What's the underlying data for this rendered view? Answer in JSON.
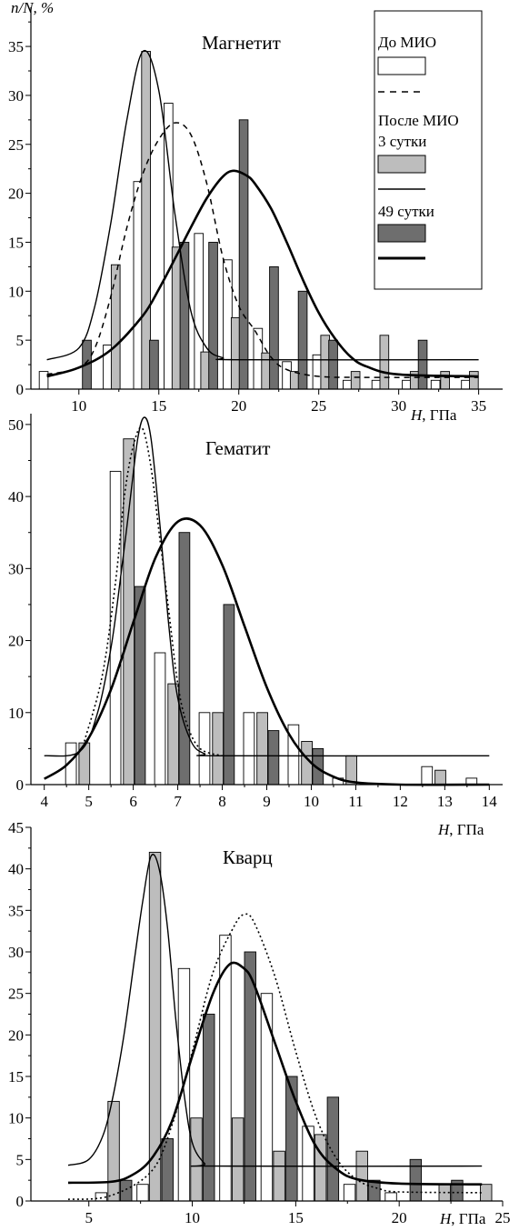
{
  "y_axis_label": "n/N, %",
  "legend": {
    "before_label": "До МИО",
    "after_label": "После МИО",
    "day3_label": "3 сутки",
    "day49_label": "49 сутки"
  },
  "colors": {
    "before_fill": "#ffffff",
    "day3_fill": "#bdbdbd",
    "day49_fill": "#6e6e6e",
    "stroke": "#000000"
  },
  "chart_data": [
    {
      "type": "bar",
      "title": "Магнетит",
      "xlabel": "H, ГПа",
      "ylabel": "n/N, %",
      "xlim": [
        7,
        36.5
      ],
      "ylim": [
        0,
        39
      ],
      "xticks": [
        10,
        15,
        20,
        25,
        30,
        35
      ],
      "yticks": [
        0,
        5,
        10,
        15,
        20,
        25,
        30,
        35
      ],
      "bar_width": 0.55,
      "series": [
        {
          "name": "До МИО",
          "style": "before",
          "x": [
            7.8,
            11.8,
            13.7,
            15.6,
            17.5,
            19.3,
            21.2,
            23.0,
            24.9,
            26.8,
            28.6,
            30.5,
            32.3,
            34.2
          ],
          "values": [
            1.8,
            4.5,
            21.2,
            29.2,
            15.9,
            13.2,
            6.2,
            2.8,
            3.5,
            0.9,
            0.9,
            0.9,
            0.9,
            0.9
          ]
        },
        {
          "name": "3 сутки",
          "style": "day3",
          "x": [
            12.3,
            14.2,
            16.1,
            17.9,
            19.8,
            21.7,
            23.5,
            25.4,
            27.3,
            29.1,
            31.0,
            32.9,
            34.7
          ],
          "values": [
            12.7,
            34.5,
            14.5,
            3.8,
            7.3,
            3.7,
            1.8,
            5.5,
            1.8,
            5.5,
            1.8,
            1.8,
            1.8
          ]
        },
        {
          "name": "49 сутки",
          "style": "day49",
          "x": [
            10.5,
            14.7,
            16.6,
            18.4,
            20.3,
            22.2,
            24.0,
            25.9,
            31.5
          ],
          "values": [
            5.0,
            5.0,
            15.0,
            15.0,
            27.5,
            12.5,
            10.0,
            5.0,
            5.0
          ]
        }
      ],
      "curves": [
        {
          "name": "До МИО",
          "style": "dashed",
          "x": [
            8,
            10,
            11,
            12,
            13,
            14,
            15,
            16,
            17,
            18,
            19,
            20,
            21,
            22,
            23,
            25,
            28,
            35
          ],
          "values": [
            1.5,
            2.2,
            4.2,
            9.5,
            16.5,
            22.0,
            25.5,
            27.2,
            26.0,
            21.0,
            13.5,
            8.5,
            6.0,
            3.3,
            2.0,
            1.3,
            1.2,
            1.2
          ]
        },
        {
          "name": "3 сутки",
          "style": "thin",
          "x": [
            8,
            10,
            11,
            12,
            13,
            14,
            15,
            16,
            17,
            18,
            19,
            20,
            35
          ],
          "values": [
            3.0,
            4.2,
            8.5,
            17.0,
            27.5,
            34.5,
            30.5,
            18.0,
            8.0,
            4.2,
            3.2,
            3.0,
            3.0
          ]
        },
        {
          "name": "49 сутки",
          "style": "thick",
          "x": [
            8,
            10,
            12,
            14,
            15,
            16,
            17,
            18,
            19,
            19.7,
            20.5,
            21,
            22,
            23,
            24,
            25,
            26,
            27,
            28,
            30,
            35
          ],
          "values": [
            1.3,
            2.2,
            4.0,
            7.5,
            10.2,
            13.3,
            16.5,
            19.5,
            21.7,
            22.3,
            21.8,
            21.0,
            18.5,
            15.0,
            11.2,
            7.8,
            5.2,
            3.3,
            2.3,
            1.5,
            1.3
          ]
        }
      ]
    },
    {
      "type": "bar",
      "title": "Гематит",
      "xlabel": "H, ГПа",
      "ylabel": "",
      "xlim": [
        3.7,
        14.3
      ],
      "ylim": [
        0,
        51.5
      ],
      "xticks": [
        4,
        5,
        6,
        7,
        8,
        9,
        10,
        11,
        12,
        13,
        14
      ],
      "yticks": [
        0,
        10,
        20,
        30,
        40,
        50
      ],
      "bar_width": 0.24,
      "series": [
        {
          "name": "До МИО",
          "style": "before",
          "x": [
            4.6,
            5.6,
            6.6,
            7.6,
            8.6,
            9.6,
            10.6,
            12.6,
            13.6
          ],
          "values": [
            5.8,
            43.5,
            18.3,
            10.0,
            10.0,
            8.3,
            0.9,
            2.5,
            0.9
          ]
        },
        {
          "name": "3 сутки",
          "style": "day3",
          "x": [
            4.9,
            5.9,
            6.9,
            7.9,
            8.9,
            9.9,
            10.9,
            12.9
          ],
          "values": [
            5.8,
            48.0,
            14.0,
            10.0,
            10.0,
            6.0,
            4.0,
            2.0
          ]
        },
        {
          "name": "49 сутки",
          "style": "day49",
          "x": [
            6.15,
            7.15,
            8.15,
            9.15,
            10.15
          ],
          "values": [
            27.5,
            35.0,
            25.0,
            7.5,
            5.0
          ]
        }
      ],
      "curves": [
        {
          "name": "До МИО",
          "style": "dotted",
          "x": [
            4.9,
            5.3,
            5.6,
            5.8,
            6.0,
            6.2,
            6.4,
            6.6,
            6.8,
            7.0,
            7.2,
            7.5,
            8.0
          ],
          "values": [
            6.0,
            15.0,
            28.0,
            40.0,
            47.0,
            49.5,
            44.0,
            34.0,
            24.0,
            14.0,
            8.5,
            5.0,
            4.0
          ]
        },
        {
          "name": "3 сутки",
          "style": "thin",
          "x": [
            4.0,
            4.8,
            5.2,
            5.5,
            5.7,
            5.9,
            6.1,
            6.25,
            6.4,
            6.6,
            6.8,
            7.0,
            7.3,
            7.6,
            8.0,
            14.0
          ],
          "values": [
            4.0,
            4.6,
            10.0,
            19.0,
            28.0,
            38.0,
            48.0,
            51.0,
            48.0,
            36.0,
            22.0,
            12.0,
            6.0,
            4.3,
            4.0,
            4.0
          ]
        },
        {
          "name": "49 сутки",
          "style": "thick",
          "x": [
            4.0,
            4.5,
            5.0,
            5.5,
            6.0,
            6.5,
            7.0,
            7.5,
            8.0,
            8.5,
            9.0,
            9.5,
            10.0,
            10.5,
            11.0,
            12.0,
            14.0
          ],
          "values": [
            0.8,
            2.7,
            6.5,
            13.2,
            22.5,
            31.5,
            36.5,
            36.0,
            30.5,
            22.0,
            13.5,
            7.0,
            3.0,
            1.1,
            0.3,
            0.0,
            0.0
          ]
        }
      ]
    },
    {
      "type": "bar",
      "title": "Кварц",
      "xlabel": "H, ГПа",
      "ylabel": "",
      "xlim": [
        2.2,
        25
      ],
      "ylim": [
        0,
        45
      ],
      "xticks": [
        5,
        10,
        15,
        20,
        25
      ],
      "yticks": [
        0,
        5,
        10,
        15,
        20,
        25,
        30,
        35,
        40,
        45
      ],
      "bar_width": 0.55,
      "series": [
        {
          "name": "До МИО",
          "style": "before",
          "x": [
            5.6,
            7.6,
            9.6,
            11.6,
            13.6,
            15.6,
            17.6,
            19.6
          ],
          "values": [
            1.0,
            2.0,
            28.0,
            32.0,
            25.0,
            9.0,
            2.0,
            1.0
          ]
        },
        {
          "name": "3 сутки",
          "style": "day3",
          "x": [
            6.2,
            8.2,
            10.2,
            12.2,
            14.2,
            16.2,
            18.2,
            22.2,
            24.2
          ],
          "values": [
            12.0,
            42.0,
            10.0,
            10.0,
            6.0,
            8.0,
            6.0,
            2.0,
            2.0
          ]
        },
        {
          "name": "49 сутки",
          "style": "day49",
          "x": [
            6.8,
            8.8,
            10.8,
            12.8,
            14.8,
            16.8,
            18.8,
            20.8,
            22.8
          ],
          "values": [
            2.5,
            7.5,
            22.5,
            30.0,
            15.0,
            12.5,
            2.5,
            5.0,
            2.5
          ]
        }
      ],
      "curves": [
        {
          "name": "До МИО",
          "style": "dotted",
          "x": [
            4,
            6,
            8,
            9,
            10,
            11,
            12,
            12.5,
            13,
            14,
            15,
            16,
            17,
            18,
            19,
            20,
            24
          ],
          "values": [
            0.2,
            0.6,
            3.5,
            9.0,
            18.0,
            27.5,
            33.0,
            34.5,
            33.5,
            27.0,
            18.0,
            10.0,
            5.0,
            2.5,
            1.5,
            1.1,
            1.0
          ]
        },
        {
          "name": "3 сутки",
          "style": "thin",
          "x": [
            4.0,
            5.0,
            5.7,
            6.2,
            6.7,
            7.2,
            7.6,
            8.0,
            8.4,
            8.8,
            9.2,
            9.6,
            10.0,
            10.6,
            11.0,
            24.0
          ],
          "values": [
            4.3,
            5.0,
            8.0,
            13.0,
            20.0,
            29.0,
            36.0,
            41.5,
            40.0,
            33.0,
            22.0,
            13.0,
            7.0,
            4.5,
            4.2,
            4.2
          ]
        },
        {
          "name": "49 сутки",
          "style": "thick",
          "x": [
            4,
            6,
            7,
            8,
            9,
            10,
            11,
            11.8,
            12.5,
            13,
            14,
            15,
            16,
            17,
            18,
            20,
            24
          ],
          "values": [
            2.2,
            2.3,
            3.0,
            5.0,
            9.5,
            17.5,
            25.0,
            28.5,
            28.0,
            26.0,
            19.0,
            12.0,
            6.5,
            3.8,
            2.6,
            2.1,
            2.0
          ]
        }
      ]
    }
  ]
}
